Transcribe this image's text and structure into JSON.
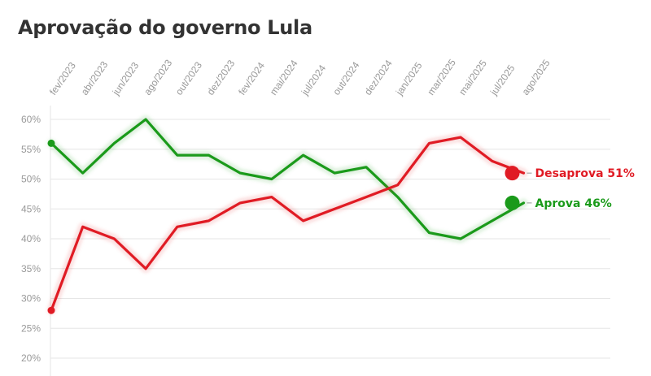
{
  "title": "Aprovação do governo Lula",
  "chart_data": {
    "type": "line",
    "title": "Aprovação do governo Lula",
    "x_tick_labels": [
      "fev/2023",
      "abr/2023",
      "jun/2023",
      "ago/2023",
      "out/2023",
      "dez/2023",
      "fev/2024",
      "mai/2024",
      "jul/2024",
      "out/2024",
      "dez/2024",
      "jan/2025",
      "mar/2025",
      "mai/2025",
      "jul/2025",
      "ago/2025"
    ],
    "y_ticks": [
      "20%",
      "25%",
      "30%",
      "35%",
      "40%",
      "45%",
      "50%",
      "55%",
      "60%"
    ],
    "ylim": [
      20,
      60
    ],
    "grid": true,
    "series": [
      {
        "name": "Aprova",
        "end_label": "Aprova 46%",
        "color": "#1a9a1a",
        "values": [
          56,
          51,
          56,
          60,
          54,
          54,
          51,
          50,
          54,
          51,
          52,
          47,
          41,
          40,
          43,
          46
        ]
      },
      {
        "name": "Desaprova",
        "end_label": "Desaprova 51%",
        "color": "#e01b24",
        "values": [
          28,
          42,
          40,
          35,
          42,
          43,
          46,
          47,
          43,
          45,
          47,
          49,
          56,
          57,
          53,
          51
        ]
      }
    ]
  }
}
